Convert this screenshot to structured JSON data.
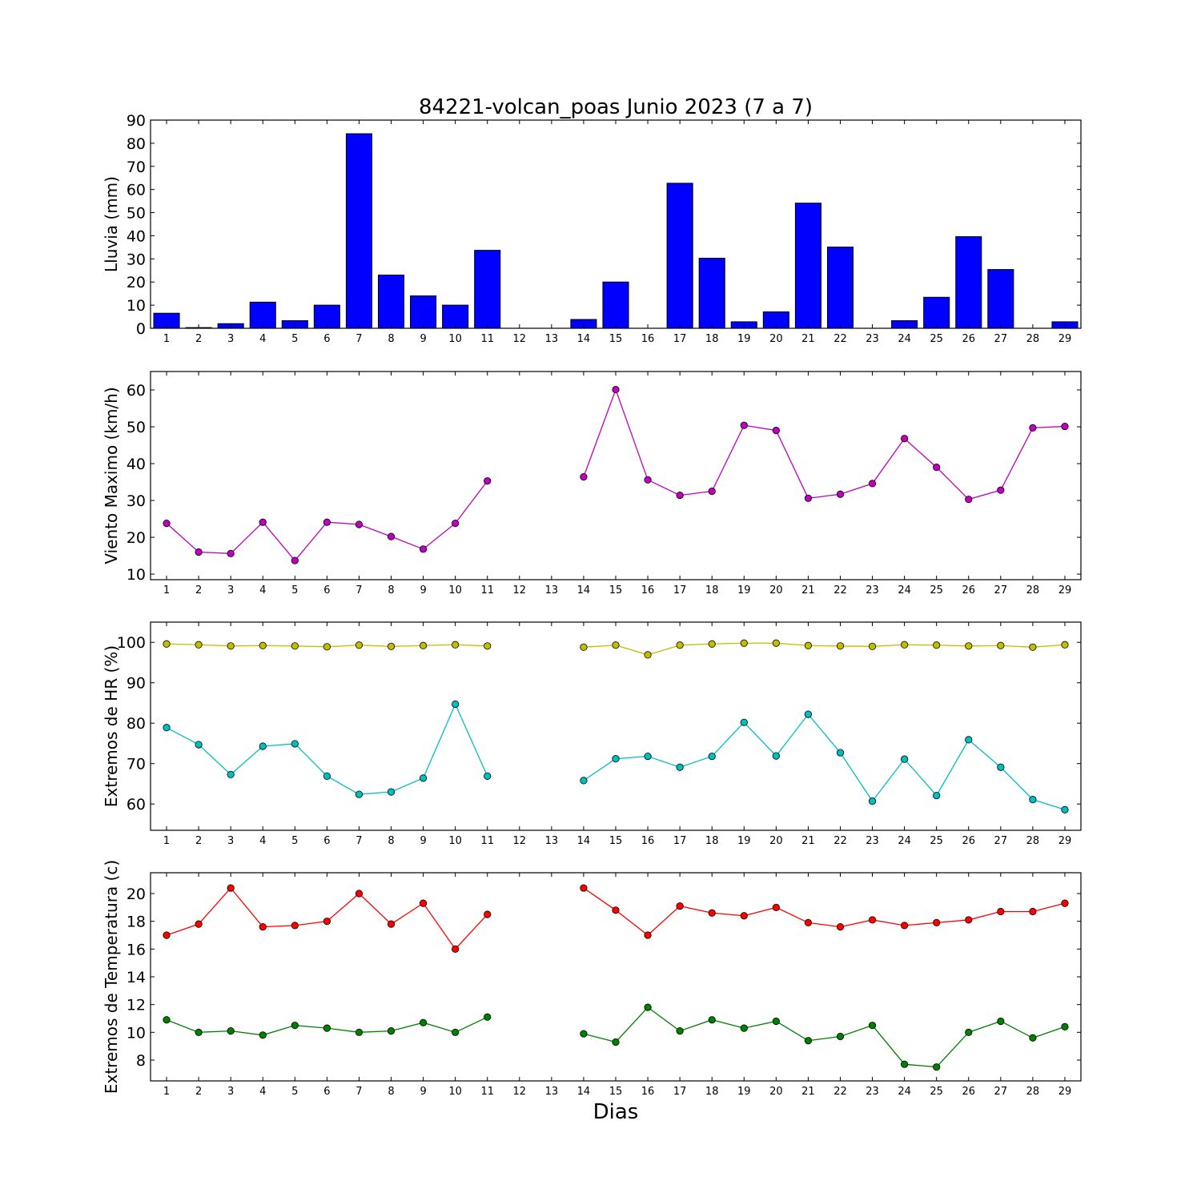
{
  "title": "84221-volcan_poas Junio 2023  (7 a 7)",
  "xlabel": "Dias",
  "days": [
    "1",
    "2",
    "3",
    "4",
    "5",
    "6",
    "7",
    "8",
    "9",
    "10",
    "11",
    "12",
    "13",
    "14",
    "15",
    "16",
    "17",
    "18",
    "19",
    "20",
    "21",
    "22",
    "23",
    "24",
    "25",
    "26",
    "27",
    "28",
    "29"
  ],
  "chart_data": [
    {
      "type": "bar",
      "ylabel": "Lluvia (mm)",
      "ylim": [
        0,
        90
      ],
      "yticks": [
        0,
        10,
        20,
        30,
        40,
        50,
        60,
        70,
        80,
        90
      ],
      "categories": [
        "1",
        "2",
        "3",
        "4",
        "5",
        "6",
        "7",
        "8",
        "9",
        "10",
        "11",
        "12",
        "13",
        "14",
        "15",
        "16",
        "17",
        "18",
        "19",
        "20",
        "21",
        "22",
        "23",
        "24",
        "25",
        "26",
        "27",
        "28",
        "29"
      ],
      "series": [
        {
          "color": "#0000ff",
          "values": [
            6.5,
            0.3,
            2.0,
            11.3,
            3.3,
            10.0,
            84.1,
            23.0,
            14.0,
            10.0,
            33.7,
            0,
            0,
            3.8,
            20.0,
            0,
            62.7,
            30.3,
            2.8,
            7.1,
            54.1,
            35.1,
            0,
            3.3,
            13.4,
            39.6,
            25.4,
            0,
            2.8
          ]
        }
      ]
    },
    {
      "type": "line",
      "ylabel": "Viento Maximo (km/h)",
      "ylim": [
        8.5,
        65
      ],
      "yticks": [
        10,
        20,
        30,
        40,
        50,
        60
      ],
      "categories": [
        "1",
        "2",
        "3",
        "4",
        "5",
        "6",
        "7",
        "8",
        "9",
        "10",
        "11",
        "12",
        "13",
        "14",
        "15",
        "16",
        "17",
        "18",
        "19",
        "20",
        "21",
        "22",
        "23",
        "24",
        "25",
        "26",
        "27",
        "28",
        "29"
      ],
      "series": [
        {
          "color": "#bf00bf",
          "values": [
            23.8,
            16.0,
            15.6,
            24.1,
            13.7,
            24.1,
            23.5,
            20.2,
            16.8,
            23.8,
            35.3,
            null,
            null,
            36.4,
            60.1,
            35.6,
            31.4,
            32.5,
            50.4,
            49.0,
            30.6,
            31.7,
            34.6,
            46.8,
            39.0,
            30.3,
            32.8,
            49.7,
            50.1
          ]
        }
      ]
    },
    {
      "type": "line",
      "ylabel": "Extremos de HR (%)",
      "ylim": [
        53.5,
        105
      ],
      "yticks": [
        60,
        70,
        80,
        90,
        100
      ],
      "categories": [
        "1",
        "2",
        "3",
        "4",
        "5",
        "6",
        "7",
        "8",
        "9",
        "10",
        "11",
        "12",
        "13",
        "14",
        "15",
        "16",
        "17",
        "18",
        "19",
        "20",
        "21",
        "22",
        "23",
        "24",
        "25",
        "26",
        "27",
        "28",
        "29"
      ],
      "series": [
        {
          "color": "#bfbf00",
          "values": [
            99.6,
            99.4,
            99.1,
            99.2,
            99.1,
            98.9,
            99.3,
            99.0,
            99.2,
            99.4,
            99.1,
            null,
            null,
            98.8,
            99.3,
            96.9,
            99.3,
            99.6,
            99.8,
            99.8,
            99.2,
            99.1,
            99.0,
            99.4,
            99.3,
            99.1,
            99.2,
            98.8,
            99.4
          ]
        },
        {
          "color": "#00bfbf",
          "values": [
            78.9,
            74.7,
            67.3,
            74.3,
            74.9,
            66.9,
            62.4,
            63.0,
            66.4,
            84.7,
            66.9,
            null,
            null,
            65.8,
            71.2,
            71.8,
            69.1,
            71.8,
            80.2,
            71.9,
            82.2,
            72.7,
            60.7,
            71.1,
            62.1,
            75.9,
            69.1,
            61.1,
            58.6
          ]
        }
      ]
    },
    {
      "type": "line",
      "ylabel": "Extremos de Temperatura (c)",
      "ylim": [
        6.5,
        21.5
      ],
      "yticks": [
        8,
        10,
        12,
        14,
        16,
        18,
        20
      ],
      "categories": [
        "1",
        "2",
        "3",
        "4",
        "5",
        "6",
        "7",
        "8",
        "9",
        "10",
        "11",
        "12",
        "13",
        "14",
        "15",
        "16",
        "17",
        "18",
        "19",
        "20",
        "21",
        "22",
        "23",
        "24",
        "25",
        "26",
        "27",
        "28",
        "29"
      ],
      "series": [
        {
          "color": "#ff0000",
          "values": [
            17.0,
            17.8,
            20.4,
            17.6,
            17.7,
            18.0,
            20.0,
            17.8,
            19.3,
            16.0,
            18.5,
            null,
            null,
            20.4,
            18.8,
            17.0,
            19.1,
            18.6,
            18.4,
            19.0,
            17.9,
            17.6,
            18.1,
            17.7,
            17.9,
            18.1,
            18.7,
            18.7,
            19.3
          ]
        },
        {
          "color": "#008000",
          "values": [
            10.9,
            10.0,
            10.1,
            9.8,
            10.5,
            10.3,
            10.0,
            10.1,
            10.7,
            10.0,
            11.1,
            null,
            null,
            9.9,
            9.3,
            11.8,
            10.1,
            10.9,
            10.3,
            10.8,
            9.4,
            9.7,
            10.5,
            7.7,
            7.5,
            10.0,
            10.8,
            9.6,
            10.4
          ]
        }
      ]
    }
  ]
}
